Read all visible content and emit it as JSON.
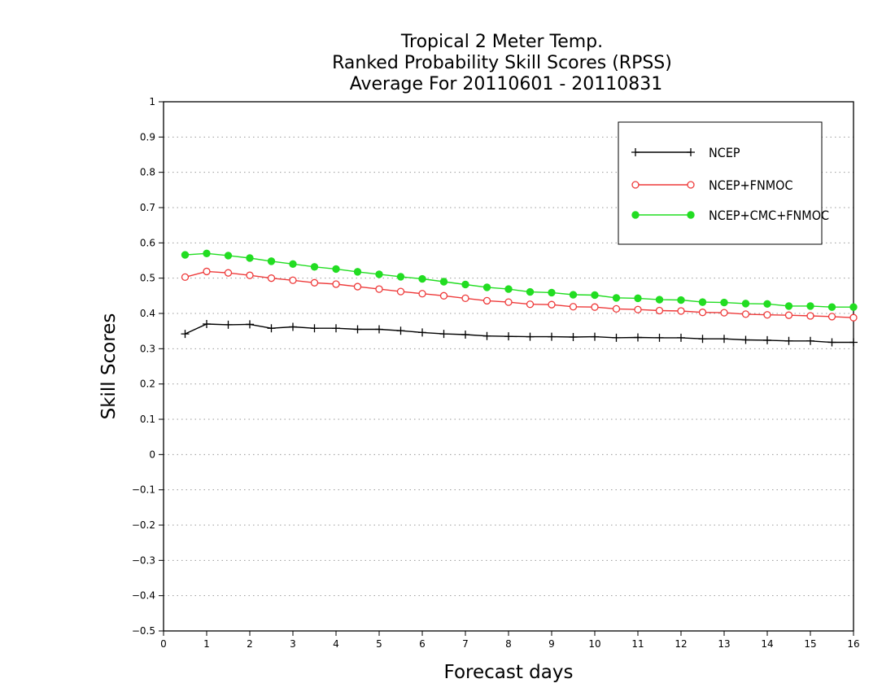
{
  "chart_data": {
    "type": "line",
    "title_lines": [
      "Tropical 2 Meter Temp.",
      "Ranked Probability Skill Scores (RPSS)",
      "Average For 20110601 - 20110831"
    ],
    "xlabel": "Forecast days",
    "ylabel": "Skill Scores",
    "xlim": [
      0,
      16
    ],
    "ylim": [
      -0.5,
      1
    ],
    "x_ticks": [
      0,
      1,
      2,
      3,
      4,
      5,
      6,
      7,
      8,
      9,
      10,
      11,
      12,
      13,
      14,
      15,
      16
    ],
    "y_ticks": [
      -0.5,
      -0.4,
      -0.3,
      -0.2,
      -0.1,
      0,
      0.1,
      0.2,
      0.3,
      0.4,
      0.5,
      0.6,
      0.7,
      0.8,
      0.9,
      1
    ],
    "y_tick_labels": [
      "−0.5",
      "−0.4",
      "−0.3",
      "−0.2",
      "−0.1",
      "0",
      "0.1",
      "0.2",
      "0.3",
      "0.4",
      "0.5",
      "0.6",
      "0.7",
      "0.8",
      "0.9",
      "1"
    ],
    "grid": "horizontal-dotted",
    "legend_position": "top-right",
    "x": [
      0.5,
      1,
      1.5,
      2,
      2.5,
      3,
      3.5,
      4,
      4.5,
      5,
      5.5,
      6,
      6.5,
      7,
      7.5,
      8,
      8.5,
      9,
      9.5,
      10,
      10.5,
      11,
      11.5,
      12,
      12.5,
      13,
      13.5,
      14,
      14.5,
      15,
      15.5,
      16
    ],
    "series": [
      {
        "name": "NCEP",
        "color": "#000000",
        "marker": "plus",
        "values": [
          0.342,
          0.37,
          0.368,
          0.369,
          0.358,
          0.362,
          0.358,
          0.358,
          0.355,
          0.355,
          0.351,
          0.346,
          0.342,
          0.34,
          0.336,
          0.335,
          0.334,
          0.334,
          0.333,
          0.334,
          0.331,
          0.332,
          0.331,
          0.331,
          0.328,
          0.328,
          0.325,
          0.324,
          0.322,
          0.322,
          0.318,
          0.318
        ]
      },
      {
        "name": "NCEP+FNMOC",
        "color": "#ee3a3a",
        "marker": "open-circle",
        "values": [
          0.503,
          0.519,
          0.515,
          0.508,
          0.5,
          0.494,
          0.487,
          0.483,
          0.476,
          0.469,
          0.462,
          0.456,
          0.45,
          0.443,
          0.436,
          0.432,
          0.426,
          0.425,
          0.419,
          0.418,
          0.413,
          0.411,
          0.408,
          0.407,
          0.403,
          0.402,
          0.398,
          0.396,
          0.395,
          0.393,
          0.391,
          0.388
        ]
      },
      {
        "name": "NCEP+CMC+FNMOC",
        "color": "#22dd22",
        "marker": "filled-circle",
        "values": [
          0.566,
          0.57,
          0.564,
          0.557,
          0.548,
          0.54,
          0.532,
          0.526,
          0.518,
          0.511,
          0.504,
          0.498,
          0.49,
          0.482,
          0.474,
          0.469,
          0.461,
          0.459,
          0.453,
          0.452,
          0.444,
          0.443,
          0.439,
          0.438,
          0.432,
          0.431,
          0.428,
          0.427,
          0.421,
          0.421,
          0.418,
          0.418
        ]
      }
    ]
  }
}
